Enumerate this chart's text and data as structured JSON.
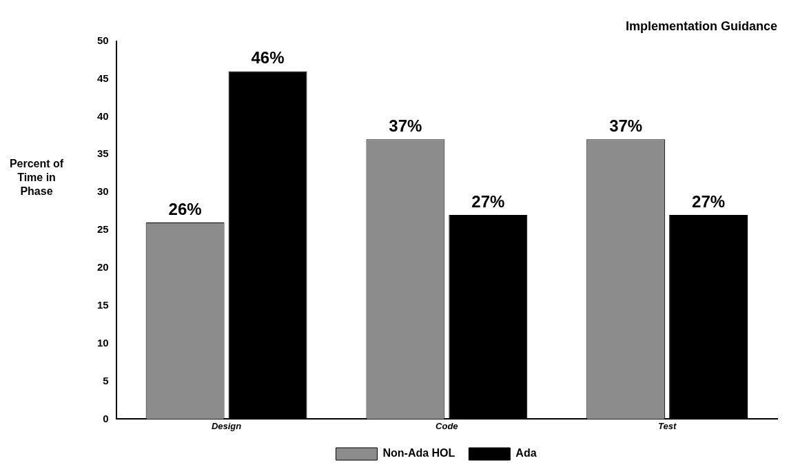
{
  "chart_data": {
    "type": "bar",
    "title": "Implementation Guidance",
    "ylabel": "Percent of Time in Phase",
    "categories": [
      "Design",
      "Code",
      "Test"
    ],
    "series": [
      {
        "name": "Non-Ada HOL",
        "color": "#8c8c8c",
        "values": [
          26,
          37,
          37
        ],
        "value_labels": [
          "26%",
          "37%",
          "37%"
        ]
      },
      {
        "name": "Ada",
        "color": "#000000",
        "values": [
          46,
          27,
          27
        ],
        "value_labels": [
          "46%",
          "27%",
          "27%"
        ]
      }
    ],
    "ylim": [
      0,
      50
    ],
    "yticks": [
      0,
      5,
      10,
      15,
      20,
      25,
      30,
      35,
      40,
      45,
      50
    ],
    "grid": false,
    "legend": "bottom"
  }
}
